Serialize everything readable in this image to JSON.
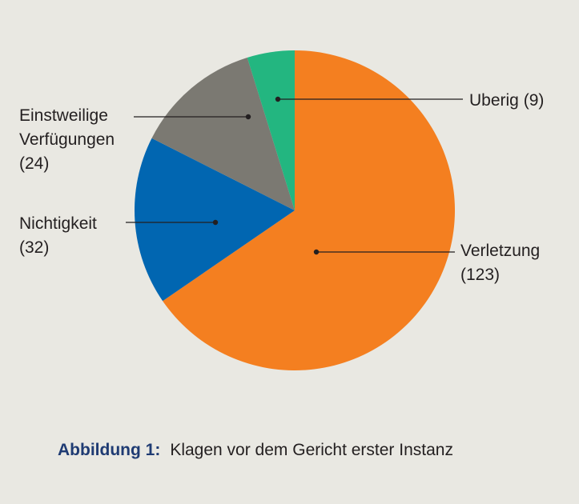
{
  "chart_data": {
    "type": "pie",
    "title": "",
    "slices": [
      {
        "label_lines": [
          "Verletzung",
          "(123)"
        ],
        "value": 123,
        "color": "#f47f20"
      },
      {
        "label_lines": [
          "Nichtigkeit",
          "(32)"
        ],
        "value": 32,
        "color": "#0166b1"
      },
      {
        "label_lines": [
          "Einstweilige",
          "Verfügungen",
          "(24)"
        ],
        "value": 24,
        "color": "#7b7972"
      },
      {
        "label_lines": [
          "Uberig (9)"
        ],
        "value": 9,
        "color": "#23b680"
      }
    ]
  },
  "caption": {
    "figure_label": "Abbildung 1:",
    "text": "Klagen vor dem Gericht erster Instanz"
  }
}
